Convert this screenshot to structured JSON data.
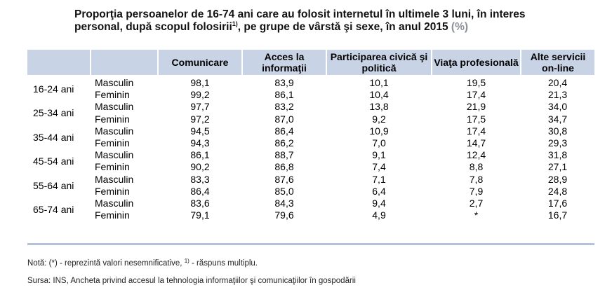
{
  "title": {
    "line1": "Proporţia persoanelor de 16-74 ani care au folosit internetul în ultimele 3 luni, în interes",
    "line2a": "personal, după  scopul folosirii",
    "footnote_mark": "1)",
    "line2b": ", pe grupe de vârstă şi sexe, în anul 2015",
    "unit": "(%)"
  },
  "table": {
    "headers": [
      "",
      "",
      "Comunicare",
      "Acces la informaţii",
      "Participarea civică şi politică",
      "Viaţa profesională",
      "Alte servicii on-line"
    ],
    "groups": [
      {
        "age": "16-24 ani",
        "rows": [
          {
            "sex": "Masculin",
            "values": [
              "98,1",
              "83,9",
              "10,1",
              "19,5",
              "20,4"
            ]
          },
          {
            "sex": "Feminin",
            "values": [
              "99,2",
              "86,1",
              "10,4",
              "17,4",
              "21,3"
            ]
          }
        ]
      },
      {
        "age": "25-34 ani",
        "rows": [
          {
            "sex": "Masculin",
            "values": [
              "97,7",
              "83,2",
              "13,8",
              "21,9",
              "34,0"
            ]
          },
          {
            "sex": "Feminin",
            "values": [
              "97,2",
              "87,0",
              "9,2",
              "17,5",
              "34,7"
            ]
          }
        ]
      },
      {
        "age": "35-44 ani",
        "rows": [
          {
            "sex": "Masculin",
            "values": [
              "94,5",
              "86,4",
              "10,9",
              "17,4",
              "30,8"
            ]
          },
          {
            "sex": "Feminin",
            "values": [
              "94,3",
              "86,2",
              "7,0",
              "14,7",
              "29,3"
            ]
          }
        ]
      },
      {
        "age": "45-54 ani",
        "rows": [
          {
            "sex": "Masculin",
            "values": [
              "86,1",
              "88,7",
              "9,1",
              "12,4",
              "31,8"
            ]
          },
          {
            "sex": "Feminin",
            "values": [
              "90,2",
              "86,8",
              "7,4",
              "8,8",
              "27,1"
            ]
          }
        ]
      },
      {
        "age": "55-64 ani",
        "rows": [
          {
            "sex": "Masculin",
            "values": [
              "83,3",
              "87,6",
              "7,1",
              "7,8",
              "28,9"
            ]
          },
          {
            "sex": "Feminin",
            "values": [
              "86,4",
              "85,0",
              "6,4",
              "7,9",
              "24,8"
            ]
          }
        ]
      },
      {
        "age": "65-74 ani",
        "rows": [
          {
            "sex": "Masculin",
            "values": [
              "83,6",
              "84,3",
              "9,4",
              "2,7",
              "17,6"
            ]
          },
          {
            "sex": "Feminin",
            "values": [
              "79,1",
              "79,6",
              "4,9",
              "*",
              "16,7"
            ]
          }
        ]
      }
    ]
  },
  "note": {
    "prefix": "Notă: (*) - reprezintă valori nesemnificative,",
    "mark": "1)",
    "suffix": "- răspuns multiplu."
  },
  "source": "Sursa: INS, Ancheta privind accesul la tehnologia informaţiilor şi comunicaţiilor în gospodării"
}
